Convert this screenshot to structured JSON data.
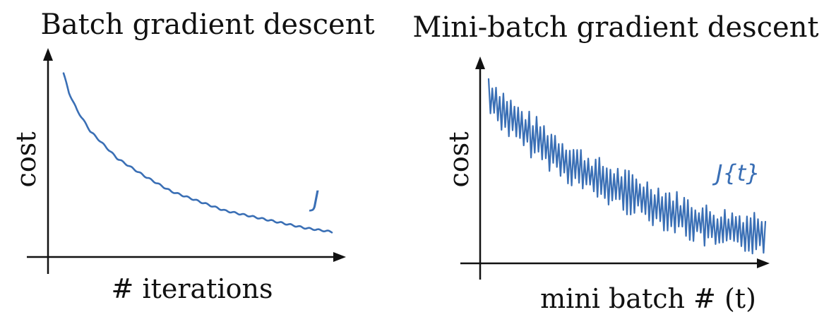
{
  "colors": {
    "curve": "#3a6fb5",
    "axis": "#111111"
  },
  "chart_data": [
    {
      "type": "line",
      "title": "Batch gradient descent",
      "xlabel": "# iterations",
      "ylabel": "cost",
      "annotation": "J",
      "grid": false,
      "series": [
        {
          "x": [
            0,
            2,
            5,
            10,
            15,
            20,
            30,
            40,
            50,
            60,
            70,
            80,
            90,
            100
          ],
          "values": [
            0.95,
            0.85,
            0.76,
            0.65,
            0.58,
            0.51,
            0.42,
            0.34,
            0.29,
            0.24,
            0.21,
            0.18,
            0.15,
            0.13
          ]
        }
      ],
      "xlim": [
        0,
        100
      ],
      "ylim": [
        0,
        1
      ]
    },
    {
      "type": "line",
      "title": "Mini-batch gradient descent",
      "xlabel": "mini batch # (t)",
      "ylabel": "cost",
      "annotation": "J{t}",
      "grid": false,
      "series": [
        {
          "x": [
            0,
            10,
            20,
            30,
            40,
            50,
            60,
            70,
            80,
            90,
            100
          ],
          "values": [
            0.85,
            0.7,
            0.6,
            0.5,
            0.42,
            0.36,
            0.3,
            0.24,
            0.18,
            0.16,
            0.16
          ],
          "noise_amplitude": 0.08
        }
      ],
      "xlim": [
        0,
        100
      ],
      "ylim": [
        0,
        1
      ]
    }
  ]
}
